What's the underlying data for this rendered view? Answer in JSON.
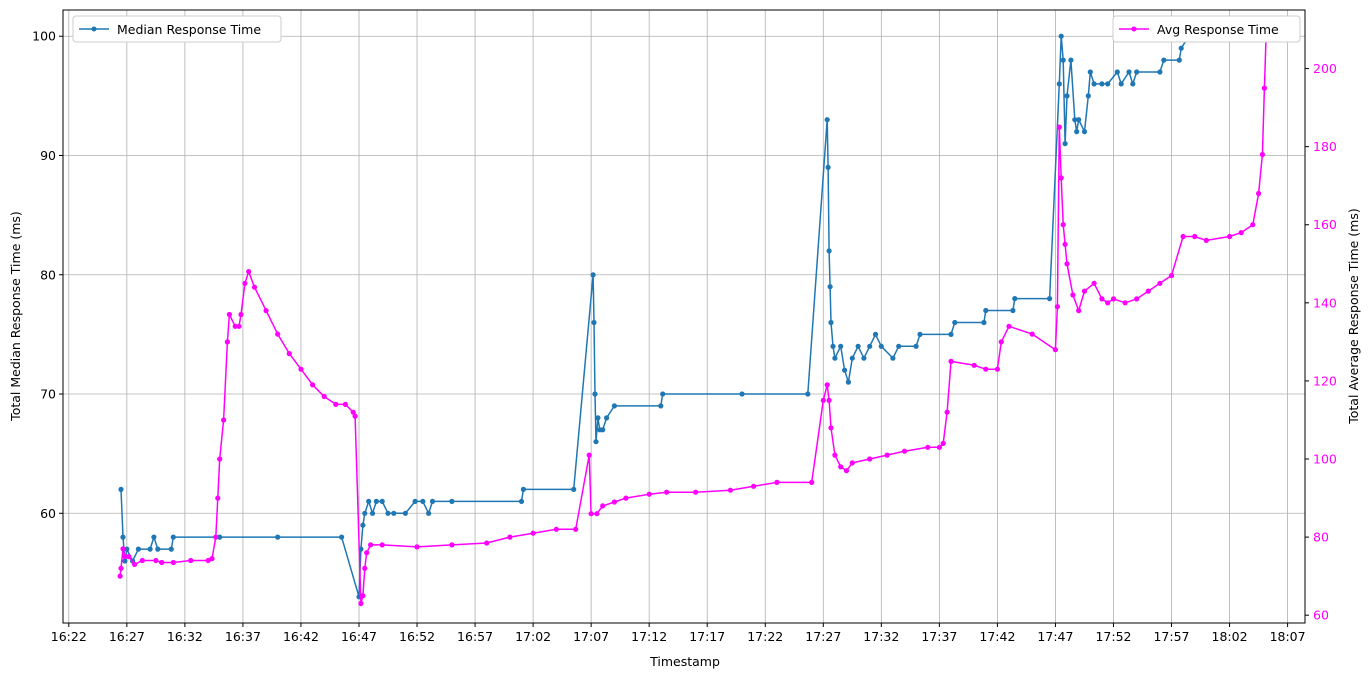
{
  "chart_data": {
    "type": "line",
    "xlabel": "Timestamp",
    "x_ticks": [
      "16:22",
      "16:27",
      "16:32",
      "16:37",
      "16:42",
      "16:47",
      "16:52",
      "16:57",
      "17:02",
      "17:07",
      "17:12",
      "17:17",
      "17:22",
      "17:27",
      "17:32",
      "17:37",
      "17:42",
      "17:47",
      "17:52",
      "17:57",
      "18:02",
      "18:07"
    ],
    "xlim": [
      "16:21.5",
      "18:08.5"
    ],
    "grid": true,
    "y_left": {
      "label": "Total Median Response Time (ms)",
      "ticks": [
        60,
        70,
        80,
        90,
        100
      ],
      "ylim": [
        50.8,
        102.2
      ],
      "color": "#1f77b4"
    },
    "y_right": {
      "label": "Total Average Response Time (ms)",
      "ticks": [
        60,
        80,
        100,
        120,
        140,
        160,
        180,
        200
      ],
      "ylim": [
        58,
        215
      ],
      "color": "#ff00ff"
    },
    "series": [
      {
        "name": "Median Response Time",
        "axis": "left",
        "color": "#1f77b4",
        "legend_position": "upper left",
        "points": [
          [
            "16:26:30",
            62
          ],
          [
            "16:26:40",
            58
          ],
          [
            "16:26:50",
            56
          ],
          [
            "16:27:00",
            57
          ],
          [
            "16:27:30",
            56
          ],
          [
            "16:28:00",
            57
          ],
          [
            "16:29:00",
            57
          ],
          [
            "16:29:20",
            58
          ],
          [
            "16:29:40",
            57
          ],
          [
            "16:30:50",
            57
          ],
          [
            "16:31:00",
            58
          ],
          [
            "16:35:00",
            58
          ],
          [
            "16:40:00",
            58
          ],
          [
            "16:45:30",
            58
          ],
          [
            "16:47:00",
            53
          ],
          [
            "16:47:10",
            57
          ],
          [
            "16:47:20",
            59
          ],
          [
            "16:47:30",
            60
          ],
          [
            "16:47:50",
            61
          ],
          [
            "16:48:10",
            60
          ],
          [
            "16:48:30",
            61
          ],
          [
            "16:49:00",
            61
          ],
          [
            "16:49:30",
            60
          ],
          [
            "16:50:00",
            60
          ],
          [
            "16:51:00",
            60
          ],
          [
            "16:51:50",
            61
          ],
          [
            "16:52:30",
            61
          ],
          [
            "16:53:00",
            60
          ],
          [
            "16:53:20",
            61
          ],
          [
            "16:55:00",
            61
          ],
          [
            "17:01:00",
            61
          ],
          [
            "17:01:10",
            62
          ],
          [
            "17:05:30",
            62
          ],
          [
            "17:07:10",
            80
          ],
          [
            "17:07:15",
            76
          ],
          [
            "17:07:20",
            70
          ],
          [
            "17:07:25",
            66
          ],
          [
            "17:07:35",
            68
          ],
          [
            "17:07:45",
            67
          ],
          [
            "17:08:00",
            67
          ],
          [
            "17:08:20",
            68
          ],
          [
            "17:09:00",
            69
          ],
          [
            "17:13:00",
            69
          ],
          [
            "17:13:10",
            70
          ],
          [
            "17:20:00",
            70
          ],
          [
            "17:25:40",
            70
          ],
          [
            "17:27:20",
            93
          ],
          [
            "17:27:25",
            89
          ],
          [
            "17:27:30",
            82
          ],
          [
            "17:27:35",
            79
          ],
          [
            "17:27:40",
            76
          ],
          [
            "17:27:50",
            74
          ],
          [
            "17:28:00",
            73
          ],
          [
            "17:28:30",
            74
          ],
          [
            "17:28:50",
            72
          ],
          [
            "17:29:10",
            71
          ],
          [
            "17:29:30",
            73
          ],
          [
            "17:30:00",
            74
          ],
          [
            "17:30:30",
            73
          ],
          [
            "17:31:00",
            74
          ],
          [
            "17:31:30",
            75
          ],
          [
            "17:32:00",
            74
          ],
          [
            "17:33:00",
            73
          ],
          [
            "17:33:30",
            74
          ],
          [
            "17:35:00",
            74
          ],
          [
            "17:35:20",
            75
          ],
          [
            "17:38:00",
            75
          ],
          [
            "17:38:20",
            76
          ],
          [
            "17:40:50",
            76
          ],
          [
            "17:41:00",
            77
          ],
          [
            "17:43:20",
            77
          ],
          [
            "17:43:30",
            78
          ],
          [
            "17:46:30",
            78
          ],
          [
            "17:47:20",
            96
          ],
          [
            "17:47:30",
            100
          ],
          [
            "17:47:40",
            98
          ],
          [
            "17:47:50",
            91
          ],
          [
            "17:48:00",
            95
          ],
          [
            "17:48:20",
            98
          ],
          [
            "17:48:40",
            93
          ],
          [
            "17:48:50",
            92
          ],
          [
            "17:49:00",
            93
          ],
          [
            "17:49:30",
            92
          ],
          [
            "17:49:50",
            95
          ],
          [
            "17:50:00",
            97
          ],
          [
            "17:50:20",
            96
          ],
          [
            "17:51:00",
            96
          ],
          [
            "17:51:30",
            96
          ],
          [
            "17:52:20",
            97
          ],
          [
            "17:52:40",
            96
          ],
          [
            "17:53:20",
            97
          ],
          [
            "17:53:40",
            96
          ],
          [
            "17:54:00",
            97
          ],
          [
            "17:56:00",
            97
          ],
          [
            "17:56:20",
            98
          ],
          [
            "17:57:40",
            98
          ],
          [
            "17:57:50",
            99
          ],
          [
            "17:58:30",
            100
          ],
          [
            "18:05:10",
            100
          ]
        ]
      },
      {
        "name": "Avg Response Time",
        "axis": "right",
        "color": "#ff00ff",
        "legend_position": "upper right",
        "points": [
          [
            "16:26:25",
            70
          ],
          [
            "16:26:30",
            72
          ],
          [
            "16:26:40",
            77
          ],
          [
            "16:26:50",
            75
          ],
          [
            "16:27:10",
            75
          ],
          [
            "16:27:40",
            73
          ],
          [
            "16:28:20",
            74
          ],
          [
            "16:29:30",
            74
          ],
          [
            "16:30:00",
            73.5
          ],
          [
            "16:31:00",
            73.5
          ],
          [
            "16:32:30",
            74
          ],
          [
            "16:34:00",
            74
          ],
          [
            "16:34:20",
            74.5
          ],
          [
            "16:34:40",
            80
          ],
          [
            "16:34:50",
            90
          ],
          [
            "16:35:00",
            100
          ],
          [
            "16:35:20",
            110
          ],
          [
            "16:35:40",
            130
          ],
          [
            "16:35:50",
            137
          ],
          [
            "16:36:20",
            134
          ],
          [
            "16:36:40",
            134
          ],
          [
            "16:36:50",
            137
          ],
          [
            "16:37:10",
            145
          ],
          [
            "16:37:30",
            148
          ],
          [
            "16:38:00",
            144
          ],
          [
            "16:39:00",
            138
          ],
          [
            "16:40:00",
            132
          ],
          [
            "16:41:00",
            127
          ],
          [
            "16:42:00",
            123
          ],
          [
            "16:43:00",
            119
          ],
          [
            "16:44:00",
            116
          ],
          [
            "16:45:00",
            114
          ],
          [
            "16:45:50",
            114
          ],
          [
            "16:46:30",
            112
          ],
          [
            "16:46:40",
            111
          ],
          [
            "16:47:10",
            63
          ],
          [
            "16:47:20",
            65
          ],
          [
            "16:47:30",
            72
          ],
          [
            "16:47:40",
            76
          ],
          [
            "16:48:00",
            78
          ],
          [
            "16:49:00",
            78
          ],
          [
            "16:52:00",
            77.5
          ],
          [
            "16:55:00",
            78
          ],
          [
            "16:58:00",
            78.5
          ],
          [
            "17:00:00",
            80
          ],
          [
            "17:02:00",
            81
          ],
          [
            "17:04:00",
            82
          ],
          [
            "17:05:40",
            82
          ],
          [
            "17:06:50",
            101
          ],
          [
            "17:07:00",
            86
          ],
          [
            "17:07:30",
            86
          ],
          [
            "17:08:00",
            88
          ],
          [
            "17:09:00",
            89
          ],
          [
            "17:10:00",
            90
          ],
          [
            "17:12:00",
            91
          ],
          [
            "17:13:30",
            91.5
          ],
          [
            "17:16:00",
            91.5
          ],
          [
            "17:19:00",
            92
          ],
          [
            "17:21:00",
            93
          ],
          [
            "17:23:00",
            94
          ],
          [
            "17:26:00",
            94
          ],
          [
            "17:27:00",
            115
          ],
          [
            "17:27:20",
            119
          ],
          [
            "17:27:30",
            115
          ],
          [
            "17:27:40",
            108
          ],
          [
            "17:28:00",
            101
          ],
          [
            "17:28:30",
            98
          ],
          [
            "17:29:00",
            97
          ],
          [
            "17:29:30",
            99
          ],
          [
            "17:31:00",
            100
          ],
          [
            "17:32:30",
            101
          ],
          [
            "17:34:00",
            102
          ],
          [
            "17:36:00",
            103
          ],
          [
            "17:37:00",
            103
          ],
          [
            "17:37:20",
            104
          ],
          [
            "17:37:40",
            112
          ],
          [
            "17:38:00",
            125
          ],
          [
            "17:40:00",
            124
          ],
          [
            "17:41:00",
            123
          ],
          [
            "17:42:00",
            123
          ],
          [
            "17:42:20",
            130
          ],
          [
            "17:43:00",
            134
          ],
          [
            "17:45:00",
            132
          ],
          [
            "17:47:00",
            128
          ],
          [
            "17:47:10",
            139
          ],
          [
            "17:47:20",
            185
          ],
          [
            "17:47:30",
            172
          ],
          [
            "17:47:40",
            160
          ],
          [
            "17:47:50",
            155
          ],
          [
            "17:48:00",
            150
          ],
          [
            "17:48:30",
            142
          ],
          [
            "17:49:00",
            138
          ],
          [
            "17:49:30",
            143
          ],
          [
            "17:50:20",
            145
          ],
          [
            "17:51:00",
            141
          ],
          [
            "17:51:30",
            140
          ],
          [
            "17:52:00",
            141
          ],
          [
            "17:53:00",
            140
          ],
          [
            "17:54:00",
            141
          ],
          [
            "17:55:00",
            143
          ],
          [
            "17:56:00",
            145
          ],
          [
            "17:57:00",
            147
          ],
          [
            "17:58:00",
            157
          ],
          [
            "17:59:00",
            157
          ],
          [
            "18:00:00",
            156
          ],
          [
            "18:02:00",
            157
          ],
          [
            "18:03:00",
            158
          ],
          [
            "18:04:00",
            160
          ],
          [
            "18:04:30",
            168
          ],
          [
            "18:04:50",
            178
          ],
          [
            "18:05:00",
            195
          ],
          [
            "18:05:10",
            210
          ]
        ]
      }
    ]
  }
}
